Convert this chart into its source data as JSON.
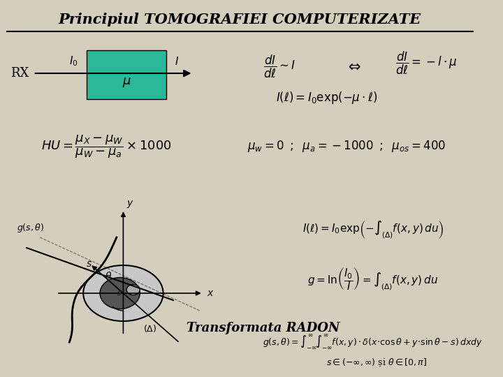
{
  "background_color": "#d4cebc",
  "title": "Principiul TOMOGRAFIEI COMPUTERIZATE",
  "title_fontsize": 16,
  "title_style": "italic",
  "line_color": "#000000",
  "box_color": "#2ab89a",
  "text_color": "#000000",
  "items": {
    "rx_label": "RX",
    "i0_label": "$I_0$",
    "i_label": "$I$",
    "mu_label": "$\\mu$",
    "eq1": "$\\dfrac{dI}{d\\ell} \\sim I$",
    "eq2": "$\\Leftrightarrow$",
    "eq3": "$\\dfrac{dI}{d\\ell} = -l \\cdot \\mu$",
    "eq4": "$I(\\ell) = I_0 \\exp(-\\mu \\cdot \\ell)$",
    "hu_eq": "$HU = \\dfrac{\\mu_X - \\mu_W}{\\mu_W - \\mu_a} \\times 1000$",
    "mu_values": "$\\mu_w = 0\\;\\; ; \\;\\; \\mu_a = -1000\\;\\; ; \\;\\; \\mu_{os} = 400$",
    "radon_label": "Transformata RADON",
    "eq5": "$I(\\ell) = I_0 \\exp\\!\\left(-\\displaystyle\\int_{(\\Delta)} f(x,y)\\,du\\right)$",
    "eq6": "$g = \\ln\\!\\left(\\dfrac{I_0}{I}\\right) = \\displaystyle\\int_{(\\Delta)} f(x,y)\\,du$",
    "eq7": "$g(s,\\theta) = \\displaystyle\\int_{-\\infty}^{\\infty}\\!\\int_{-\\infty}^{\\infty} f(x,y)\\cdot\\delta(x\\cdot\\cos\\theta + y\\cdot\\sin\\theta - s)\\,dxdy$",
    "eq8": "$s \\in (-\\infty, \\infty)$ \\c{s}i $\\theta \\in [0,\\pi]$"
  }
}
